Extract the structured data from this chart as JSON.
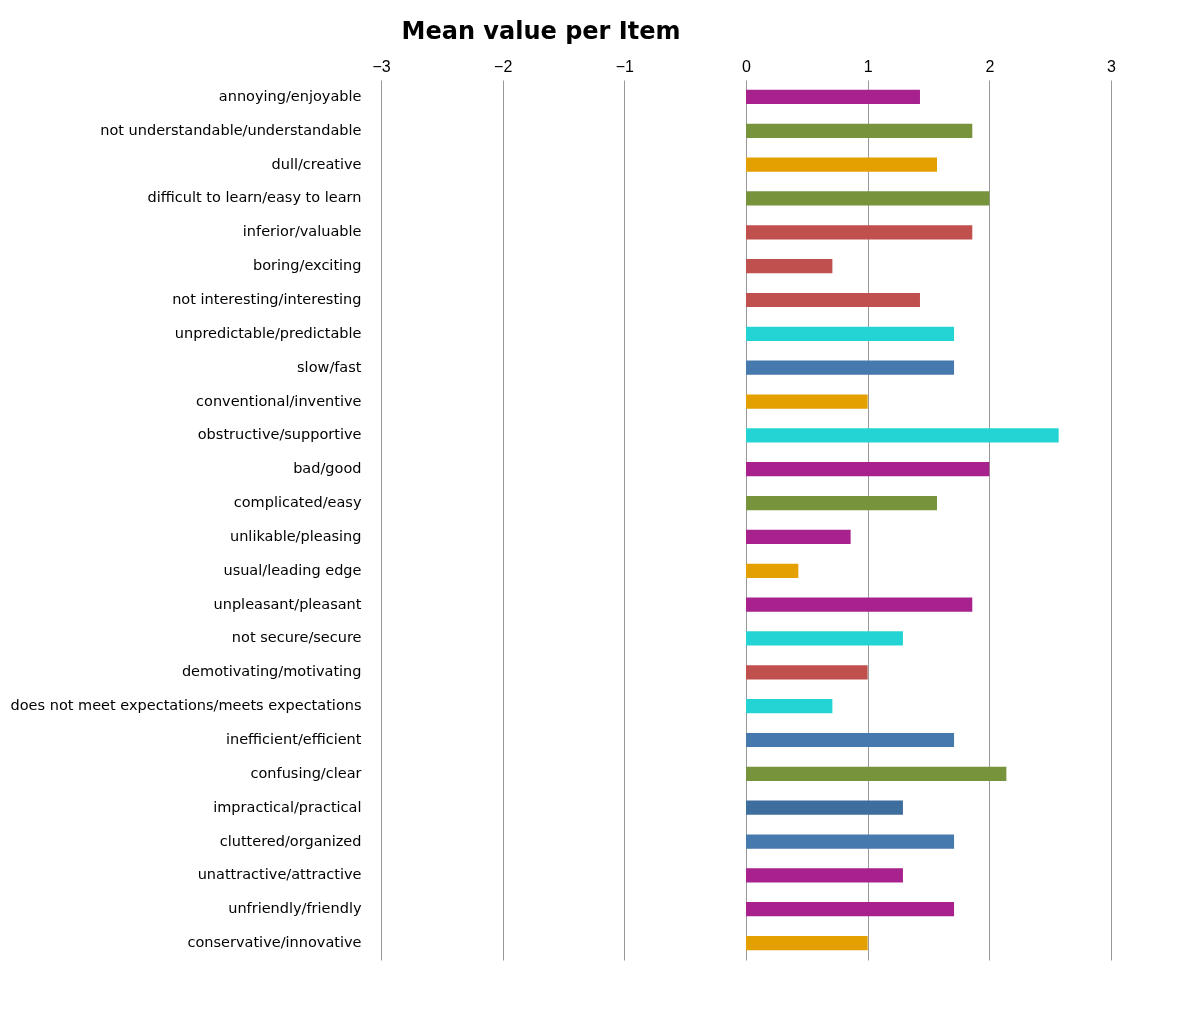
{
  "chart_data": {
    "type": "bar",
    "orientation": "horizontal",
    "title": "Mean value per Item",
    "categories": [
      "annoying/enjoyable",
      "not understandable/understandable",
      "dull/creative",
      "difficult to learn/easy to learn",
      "inferior/valuable",
      "boring/exciting",
      "not interesting/interesting",
      "unpredictable/predictable",
      "slow/fast",
      "conventional/inventive",
      "obstructive/supportive",
      "bad/good",
      "complicated/easy",
      "unlikable/pleasing",
      "usual/leading edge",
      "unpleasant/pleasant",
      "not secure/secure",
      "demotivating/motivating",
      "does not meet expectations/meets expectations",
      "inefficient/efficient",
      "confusing/clear",
      "impractical/practical",
      "cluttered/organized",
      "unattractive/attractive",
      "unfriendly/friendly",
      "conservative/innovative"
    ],
    "values": [
      1.43,
      1.86,
      1.57,
      2.0,
      1.86,
      0.71,
      1.43,
      1.71,
      1.71,
      1.0,
      2.57,
      2.0,
      1.57,
      0.86,
      0.43,
      1.86,
      1.29,
      1.0,
      0.71,
      1.71,
      2.14,
      1.29,
      1.71,
      1.29,
      1.71,
      1.0
    ],
    "colors": [
      "#a8228e",
      "#77933c",
      "#e3a000",
      "#77933c",
      "#c0504d",
      "#c0504d",
      "#c0504d",
      "#24d4d4",
      "#4679ad",
      "#e3a000",
      "#24d4d4",
      "#a8228e",
      "#77933c",
      "#a8228e",
      "#e3a000",
      "#a8228e",
      "#24d4d4",
      "#c0504d",
      "#24d4d4",
      "#4679ad",
      "#77933c",
      "#3d6e9e",
      "#4679ad",
      "#a8228e",
      "#a8228e",
      "#e3a000"
    ],
    "xlim": [
      -3,
      3
    ],
    "xticks": [
      -3,
      -2,
      -1,
      0,
      1,
      2,
      3
    ],
    "grid": "x"
  }
}
